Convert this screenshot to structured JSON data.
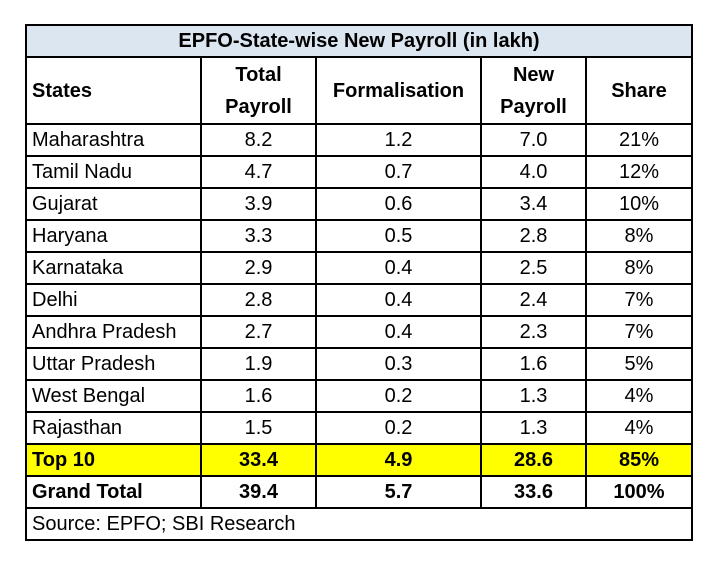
{
  "chart_data": {
    "type": "table",
    "title": "EPFO-State-wise New Payroll (in lakh)",
    "columns": [
      "States",
      "Total Payroll",
      "Formalisation",
      "New Payroll",
      "Share"
    ],
    "rows": [
      [
        "Maharashtra",
        "8.2",
        "1.2",
        "7.0",
        "21%"
      ],
      [
        "Tamil Nadu",
        "4.7",
        "0.7",
        "4.0",
        "12%"
      ],
      [
        "Gujarat",
        "3.9",
        "0.6",
        "3.4",
        "10%"
      ],
      [
        "Haryana",
        "3.3",
        "0.5",
        "2.8",
        "8%"
      ],
      [
        "Karnataka",
        "2.9",
        "0.4",
        "2.5",
        "8%"
      ],
      [
        "Delhi",
        "2.8",
        "0.4",
        "2.4",
        "7%"
      ],
      [
        "Andhra Pradesh",
        "2.7",
        "0.4",
        "2.3",
        "7%"
      ],
      [
        "Uttar Pradesh",
        "1.9",
        "0.3",
        "1.6",
        "5%"
      ],
      [
        "West Bengal",
        "1.6",
        "0.2",
        "1.3",
        "4%"
      ],
      [
        "Rajasthan",
        "1.5",
        "0.2",
        "1.3",
        "4%"
      ]
    ],
    "top10": [
      "Top 10",
      "33.4",
      "4.9",
      "28.6",
      "85%"
    ],
    "grand_total": [
      "Grand Total",
      "39.4",
      "5.7",
      "33.6",
      "100%"
    ],
    "source": "Source: EPFO; SBI Research",
    "highlight_color": "#ffff00",
    "title_bg": "#dce6f1"
  }
}
